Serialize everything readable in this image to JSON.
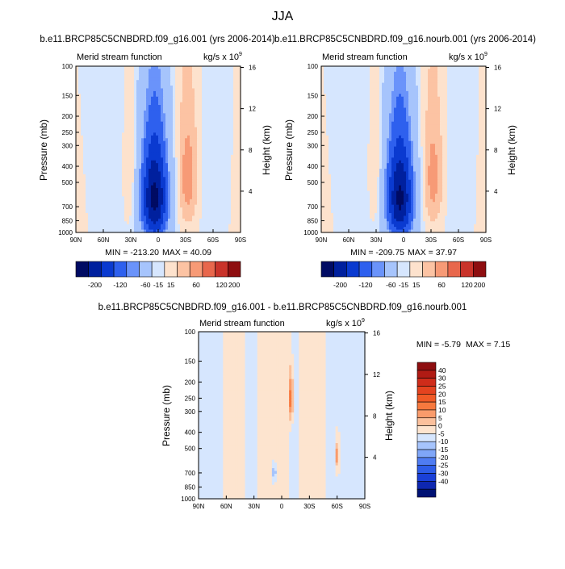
{
  "page": {
    "title": "JJA"
  },
  "colors": {
    "plot_bg": "#ffffff",
    "axis": "#000000"
  },
  "chart_data": [
    {
      "type": "heatmap",
      "id": "panel-left",
      "title": "b.e11.BRCP85C5CNBDRD.f09_g16.001 (yrs 2006-2014)",
      "subtitle_left": "Merid stream function",
      "units_base": "kg/s x 10",
      "units_exp": "9",
      "xlabel": "",
      "ylabel": "Pressure (mb)",
      "y2label": "Height (km)",
      "x_ticks": [
        "90N",
        "60N",
        "30N",
        "0",
        "30S",
        "60S",
        "90S"
      ],
      "x_lat": [
        90,
        60,
        30,
        0,
        -30,
        -60,
        -90
      ],
      "y_ticks": [
        "100",
        "150",
        "200",
        "250",
        "300",
        "400",
        "500",
        "700",
        "850",
        "1000"
      ],
      "y_pressure": [
        100,
        150,
        200,
        250,
        300,
        400,
        500,
        700,
        850,
        1000
      ],
      "y2_ticks": [
        "16",
        "12",
        "8",
        "4"
      ],
      "y2_km": [
        16,
        12,
        8,
        4
      ],
      "min_label": "MIN = -213.20",
      "max_label": "MAX =  40.09",
      "min": -213.2,
      "max": 40.09,
      "features": [
        {
          "lat": 4,
          "p": 620,
          "amp": -213.2,
          "slat": 11,
          "sp": 340
        },
        {
          "lat": -32,
          "p": 470,
          "amp": 40.09,
          "slat": 9,
          "sp": 300
        },
        {
          "lat": 30,
          "p": 480,
          "amp": 22,
          "slat": 5,
          "sp": 270
        },
        {
          "lat": 62,
          "p": 500,
          "amp": -14,
          "slat": 14,
          "sp": 450
        },
        {
          "lat": -62,
          "p": 560,
          "amp": -14,
          "slat": 13,
          "sp": 420
        },
        {
          "lat": 82,
          "p": 700,
          "amp": 7,
          "slat": 8,
          "sp": 400
        },
        {
          "lat": -84,
          "p": 700,
          "amp": 7,
          "slat": 8,
          "sp": 400
        }
      ],
      "colorbar": {
        "orientation": "horizontal",
        "labels": [
          "-200",
          "-120",
          "-60",
          "-15",
          "15",
          "60",
          "120",
          "200"
        ],
        "colors": [
          "#000b63",
          "#00209e",
          "#0a3ad0",
          "#2e60ee",
          "#6a93fa",
          "#a6c4fc",
          "#d6e6fe",
          "#fde2cd",
          "#fcc3a3",
          "#f79a76",
          "#e8674c",
          "#c9332a",
          "#8e0e10"
        ]
      }
    },
    {
      "type": "heatmap",
      "id": "panel-right",
      "title": "b.e11.BRCP85C5CNBDRD.f09_g16.nourb.001 (yrs 2006-2014)",
      "subtitle_left": "Merid stream function",
      "units_base": "kg/s x 10",
      "units_exp": "9",
      "xlabel": "",
      "ylabel": "Pressure (mb)",
      "y2label": "Height (km)",
      "x_ticks": [
        "90N",
        "60N",
        "30N",
        "0",
        "30S",
        "60S",
        "90S"
      ],
      "x_lat": [
        90,
        60,
        30,
        0,
        -30,
        -60,
        -90
      ],
      "y_ticks": [
        "100",
        "150",
        "200",
        "250",
        "300",
        "400",
        "500",
        "700",
        "850",
        "1000"
      ],
      "y_pressure": [
        100,
        150,
        200,
        250,
        300,
        400,
        500,
        700,
        850,
        1000
      ],
      "y2_ticks": [
        "16",
        "12",
        "8",
        "4"
      ],
      "y2_km": [
        16,
        12,
        8,
        4
      ],
      "min_label": "MIN = -209.75",
      "max_label": "MAX =  37.97",
      "min": -209.75,
      "max": 37.97,
      "features": [
        {
          "lat": 4,
          "p": 620,
          "amp": -209.75,
          "slat": 11,
          "sp": 340
        },
        {
          "lat": -32,
          "p": 470,
          "amp": 37.97,
          "slat": 9,
          "sp": 300
        },
        {
          "lat": 30,
          "p": 480,
          "amp": 21,
          "slat": 5,
          "sp": 270
        },
        {
          "lat": 62,
          "p": 500,
          "amp": -14,
          "slat": 14,
          "sp": 450
        },
        {
          "lat": -62,
          "p": 560,
          "amp": -14,
          "slat": 13,
          "sp": 420
        },
        {
          "lat": 82,
          "p": 700,
          "amp": 7,
          "slat": 8,
          "sp": 400
        },
        {
          "lat": -84,
          "p": 700,
          "amp": 7,
          "slat": 8,
          "sp": 400
        }
      ],
      "colorbar": {
        "orientation": "horizontal",
        "labels": [
          "-200",
          "-120",
          "-60",
          "-15",
          "15",
          "60",
          "120",
          "200"
        ],
        "colors": [
          "#000b63",
          "#00209e",
          "#0a3ad0",
          "#2e60ee",
          "#6a93fa",
          "#a6c4fc",
          "#d6e6fe",
          "#fde2cd",
          "#fcc3a3",
          "#f79a76",
          "#e8674c",
          "#c9332a",
          "#8e0e10"
        ]
      }
    },
    {
      "type": "heatmap",
      "id": "panel-diff",
      "title": "b.e11.BRCP85C5CNBDRD.f09_g16.001 - b.e11.BRCP85C5CNBDRD.f09_g16.nourb.001",
      "subtitle_left": "Merid stream function",
      "units_base": "kg/s x 10",
      "units_exp": "9",
      "xlabel": "",
      "ylabel": "Pressure (mb)",
      "y2label": "Height (km)",
      "x_ticks": [
        "90N",
        "60N",
        "30N",
        "0",
        "30S",
        "60S",
        "90S"
      ],
      "x_lat": [
        90,
        60,
        30,
        0,
        -30,
        -60,
        -90
      ],
      "y_ticks": [
        "100",
        "150",
        "200",
        "250",
        "300",
        "400",
        "500",
        "700",
        "850",
        "1000"
      ],
      "y_pressure": [
        100,
        150,
        200,
        250,
        300,
        400,
        500,
        700,
        850,
        1000
      ],
      "y2_ticks": [
        "16",
        "12",
        "8",
        "4"
      ],
      "y2_km": [
        16,
        12,
        8,
        4
      ],
      "min_label": "MIN =  -5.79",
      "max_label": "MAX =   7.15",
      "min": -5.79,
      "max": 7.15,
      "features": [
        {
          "lat": 78,
          "p": 500,
          "amp": -1.6,
          "slat": 9,
          "sp": 700
        },
        {
          "lat": 50,
          "p": 350,
          "amp": 1.6,
          "slat": 8,
          "sp": 900
        },
        {
          "lat": 35,
          "p": 500,
          "amp": -1.3,
          "slat": 5,
          "sp": 800
        },
        {
          "lat": 18,
          "p": 400,
          "amp": 1.3,
          "slat": 4,
          "sp": 900
        },
        {
          "lat": 2,
          "p": 700,
          "amp": 1.4,
          "slat": 5,
          "sp": 700
        },
        {
          "lat": 8,
          "p": 700,
          "amp": -5.79,
          "slat": 1.2,
          "sp": 60
        },
        {
          "lat": -10,
          "p": 250,
          "amp": 7.15,
          "slat": 2,
          "sp": 60
        },
        {
          "lat": -14,
          "p": 480,
          "amp": -1.2,
          "slat": 3,
          "sp": 700
        },
        {
          "lat": -35,
          "p": 600,
          "amp": 1.5,
          "slat": 8,
          "sp": 800
        },
        {
          "lat": -52,
          "p": 600,
          "amp": -1.4,
          "slat": 3,
          "sp": 900
        },
        {
          "lat": -60,
          "p": 550,
          "amp": 6,
          "slat": 1.2,
          "sp": 60
        },
        {
          "lat": -78,
          "p": 500,
          "amp": -1.5,
          "slat": 6,
          "sp": 800
        }
      ],
      "colorbar": {
        "orientation": "vertical",
        "labels": [
          "40",
          "30",
          "25",
          "20",
          "15",
          "10",
          "5",
          "0",
          "-5",
          "-10",
          "-15",
          "-20",
          "-25",
          "-30",
          "-40"
        ],
        "colors": [
          "#8e0e10",
          "#b01b14",
          "#cf2c1a",
          "#e4431f",
          "#f05a26",
          "#f7793e",
          "#f99b6b",
          "#fbc09c",
          "#fde4cf",
          "#d6e6fe",
          "#a6c4fc",
          "#7fa6f8",
          "#4f7cf2",
          "#2d5ce8",
          "#1a40d8",
          "#0e27b0",
          "#001274"
        ]
      }
    }
  ]
}
